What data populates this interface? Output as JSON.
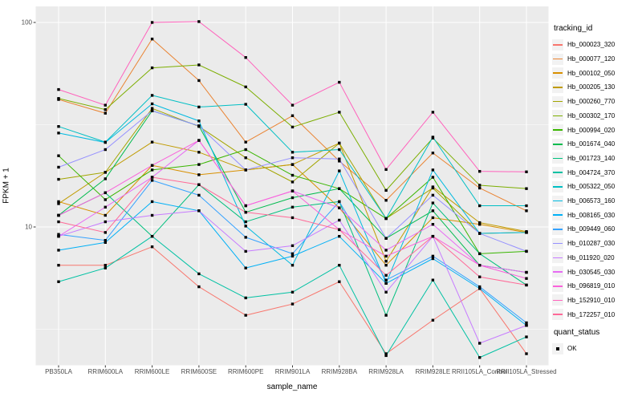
{
  "chart_data": {
    "type": "line",
    "title": "",
    "xlabel": "sample_name",
    "ylabel": "FPKM + 1",
    "y_scale": "log10",
    "ylim": [
      2.1,
      120
    ],
    "y_major_ticks": [
      10,
      100
    ],
    "y_minor_ticks": [
      3.1623,
      31.623
    ],
    "grid": true,
    "legend_position": "right",
    "panel_background": "#EBEBEB",
    "grid_color": "#FFFFFF",
    "point_color": "#000000",
    "categories": [
      "PB350LA",
      "RRIM600LA",
      "RRIM600LE",
      "RRIM600SE",
      "RRIM600PE",
      "RRIM901LA",
      "RRIM928BA",
      "RRIM928LA",
      "RRIM928LE",
      "RRII105LA_Control",
      "RRII105LA_Stressed"
    ],
    "legend": {
      "title": "tracking_id"
    },
    "quant_legend": {
      "title": "quant_status",
      "items": [
        {
          "label": "OK",
          "marker": "black-square-point"
        }
      ]
    },
    "series": [
      {
        "name": "Hb_000023_320",
        "color": "#F8766D",
        "values": [
          6.5,
          6.5,
          8.0,
          5.1,
          3.7,
          4.2,
          5.4,
          2.4,
          3.5,
          5.0,
          2.4
        ]
      },
      {
        "name": "Hb_000077_120",
        "color": "#EA8331",
        "values": [
          42,
          36,
          83,
          52,
          26,
          35,
          21,
          13.5,
          23,
          15.5,
          12
        ]
      },
      {
        "name": "Hb_000102_050",
        "color": "#D89000",
        "values": [
          13.3,
          11.4,
          20,
          18,
          19,
          20.2,
          12.4,
          6.5,
          11.1,
          10.3,
          9.4
        ]
      },
      {
        "name": "Hb_000205_130",
        "color": "#C09B00",
        "values": [
          13.0,
          18.5,
          26,
          23.2,
          19,
          20.2,
          25.7,
          6.8,
          15.7,
          10.5,
          9.5
        ]
      },
      {
        "name": "Hb_000260_770",
        "color": "#A3A500",
        "values": [
          17.1,
          18.5,
          38,
          31,
          21.8,
          16.6,
          25.7,
          11,
          15.5,
          9.3,
          9.4
        ]
      },
      {
        "name": "Hb_000302_170",
        "color": "#7CAE00",
        "values": [
          42.5,
          37.5,
          60,
          62,
          48.4,
          30.8,
          36.4,
          15.1,
          27.2,
          16,
          15.4
        ]
      },
      {
        "name": "Hb_000994_020",
        "color": "#39B600",
        "values": [
          22.3,
          13.6,
          19,
          20.2,
          23.9,
          17.9,
          15.4,
          11,
          17.5,
          7.4,
          7.6
        ]
      },
      {
        "name": "Hb_001674_040",
        "color": "#00BB4E",
        "values": [
          11.4,
          17.2,
          37,
          31.2,
          11.8,
          13.9,
          15.4,
          8.8,
          12,
          6.5,
          6.0
        ]
      },
      {
        "name": "Hb_001723_140",
        "color": "#00BF7D",
        "values": [
          11.4,
          14.7,
          9.0,
          16.1,
          10.6,
          12.5,
          13.3,
          3.7,
          13.1,
          7.4,
          5.2
        ]
      },
      {
        "name": "Hb_004724_370",
        "color": "#00C1A3",
        "values": [
          5.4,
          6.3,
          9.0,
          5.9,
          4.5,
          4.8,
          6.5,
          2.35,
          5.5,
          2.3,
          2.9
        ]
      },
      {
        "name": "Hb_005322_050",
        "color": "#00BFC4",
        "values": [
          31,
          26,
          44,
          38.6,
          39.8,
          23.2,
          23.9,
          11,
          27.5,
          12.7,
          12.7
        ]
      },
      {
        "name": "Hb_006573_160",
        "color": "#00BAE0",
        "values": [
          28.8,
          25.9,
          40,
          33,
          10.1,
          6.5,
          18.8,
          5.3,
          19,
          9.3,
          9.4
        ]
      },
      {
        "name": "Hb_008165_030",
        "color": "#00B0F6",
        "values": [
          7.7,
          8.4,
          13.3,
          12.0,
          6.3,
          7.2,
          9.0,
          5.3,
          7.0,
          5.0,
          3.3
        ]
      },
      {
        "name": "Hb_009449_060",
        "color": "#35A2FF",
        "values": [
          9.2,
          8.6,
          16.9,
          14.3,
          8.9,
          7.4,
          13.3,
          5.5,
          7.2,
          5.1,
          3.4
        ]
      },
      {
        "name": "Hb_010287_030",
        "color": "#9590FF",
        "values": [
          19.6,
          23.9,
          37,
          31.2,
          19.0,
          21.8,
          21.5,
          8.8,
          14.3,
          9.3,
          7.6
        ]
      },
      {
        "name": "Hb_011920_020",
        "color": "#C77CFF",
        "values": [
          9.0,
          10.6,
          11.4,
          12.0,
          7.6,
          8.1,
          10.8,
          4.8,
          9.0,
          2.7,
          3.3
        ]
      },
      {
        "name": "Hb_030545_030",
        "color": "#E76BF3",
        "values": [
          9.0,
          12.5,
          17.5,
          26.5,
          12.7,
          15.0,
          12.4,
          7.7,
          10.3,
          6.5,
          6.0
        ]
      },
      {
        "name": "Hb_096819_010",
        "color": "#FA62DB",
        "values": [
          11.4,
          14.7,
          20,
          26.5,
          12.7,
          15.0,
          9.7,
          7.2,
          9.0,
          6.5,
          5.6
        ]
      },
      {
        "name": "Hb_152910_010",
        "color": "#FF62BC",
        "values": [
          47,
          39.4,
          100,
          101,
          67.4,
          39.4,
          51,
          19.1,
          36.4,
          18.7,
          18.6
        ]
      },
      {
        "name": "Hb_172257_010",
        "color": "#FF6A98",
        "values": [
          10.6,
          9.4,
          17.5,
          16.1,
          11.8,
          11.1,
          9.7,
          5.8,
          9.0,
          5.7,
          5.2
        ]
      }
    ]
  }
}
